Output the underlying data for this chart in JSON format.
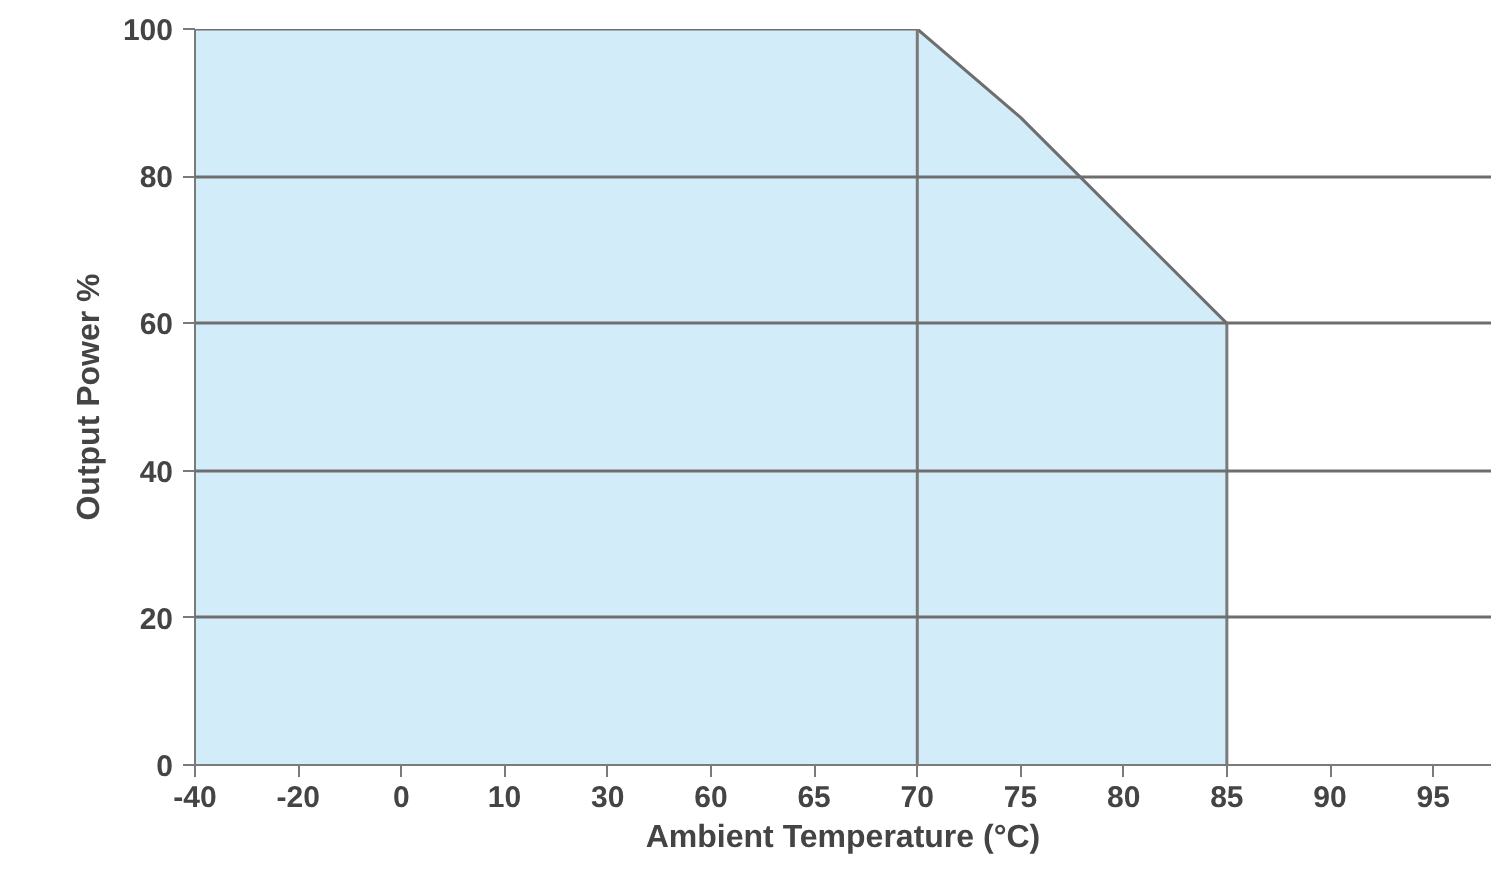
{
  "chart_data": {
    "type": "area",
    "xlabel": "Ambient Temperature (°C)",
    "ylabel": "Output Power %",
    "categories": [
      "-40",
      "-20",
      "0",
      "10",
      "30",
      "60",
      "65",
      "70",
      "75",
      "80",
      "85",
      "90",
      "95"
    ],
    "series": [
      {
        "color": "#d2ecf9",
        "values": [
          100,
          100,
          100,
          100,
          100,
          100,
          100,
          100,
          88,
          74,
          60,
          null,
          null
        ]
      }
    ],
    "ref_lines": [
      {
        "axis": "x",
        "value": "70",
        "color": "#7a7a7a"
      },
      {
        "axis": "x",
        "value": "85",
        "color": "#7a7a7a"
      }
    ],
    "ylim": [
      0,
      100
    ],
    "yticks": [
      0,
      20,
      40,
      60,
      80,
      100
    ],
    "grid": "y"
  }
}
